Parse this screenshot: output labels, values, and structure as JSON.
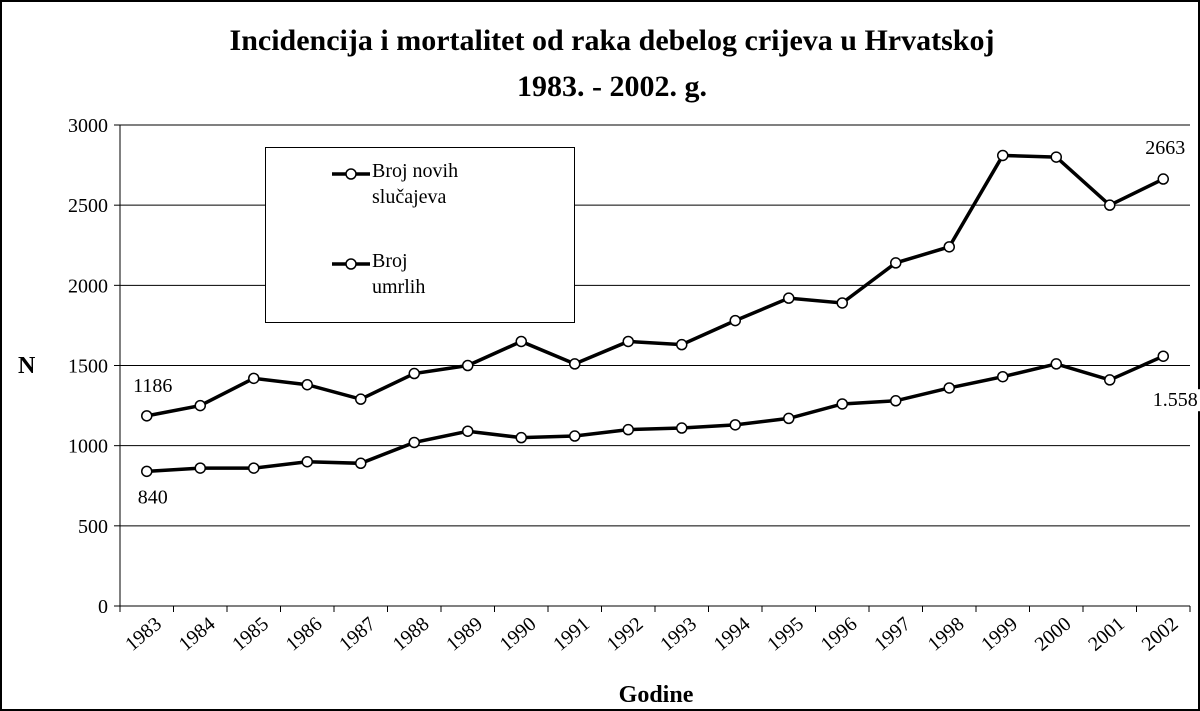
{
  "chart_data": {
    "type": "line",
    "title": "Incidencija i mortalitet od raka debelog crijeva u Hrvatskoj",
    "subtitle": "1983. - 2002. g.",
    "x_label": "Godine",
    "y_label": "N",
    "categories": [
      "1983",
      "1984",
      "1985",
      "1986",
      "1987",
      "1988",
      "1989",
      "1990",
      "1991",
      "1992",
      "1993",
      "1994",
      "1995",
      "1996",
      "1997",
      "1998",
      "1999",
      "2000",
      "2001",
      "2002"
    ],
    "series": [
      {
        "name": "Broj novih slučajeva",
        "color": "#000000",
        "values": [
          1186,
          1250,
          1420,
          1380,
          1290,
          1450,
          1500,
          1650,
          1510,
          1650,
          1630,
          1780,
          1920,
          1890,
          2140,
          2240,
          2810,
          2800,
          2500,
          2663
        ],
        "value_labels": [
          "1186",
          null,
          null,
          null,
          null,
          null,
          null,
          null,
          null,
          null,
          null,
          null,
          null,
          null,
          null,
          null,
          null,
          null,
          null,
          "2663"
        ]
      },
      {
        "name": "Broj umrlih",
        "color": "#000000",
        "values": [
          840,
          860,
          860,
          900,
          890,
          1020,
          1090,
          1050,
          1060,
          1100,
          1110,
          1130,
          1170,
          1260,
          1280,
          1360,
          1430,
          1510,
          1410,
          1558
        ],
        "value_labels": [
          "840",
          null,
          null,
          null,
          null,
          null,
          null,
          null,
          null,
          null,
          null,
          null,
          null,
          null,
          null,
          null,
          null,
          null,
          null,
          "1.558"
        ]
      }
    ],
    "ylim": [
      0,
      3000
    ],
    "yticks": [
      0,
      500,
      1000,
      1500,
      2000,
      2500,
      3000
    ],
    "grid": true
  }
}
